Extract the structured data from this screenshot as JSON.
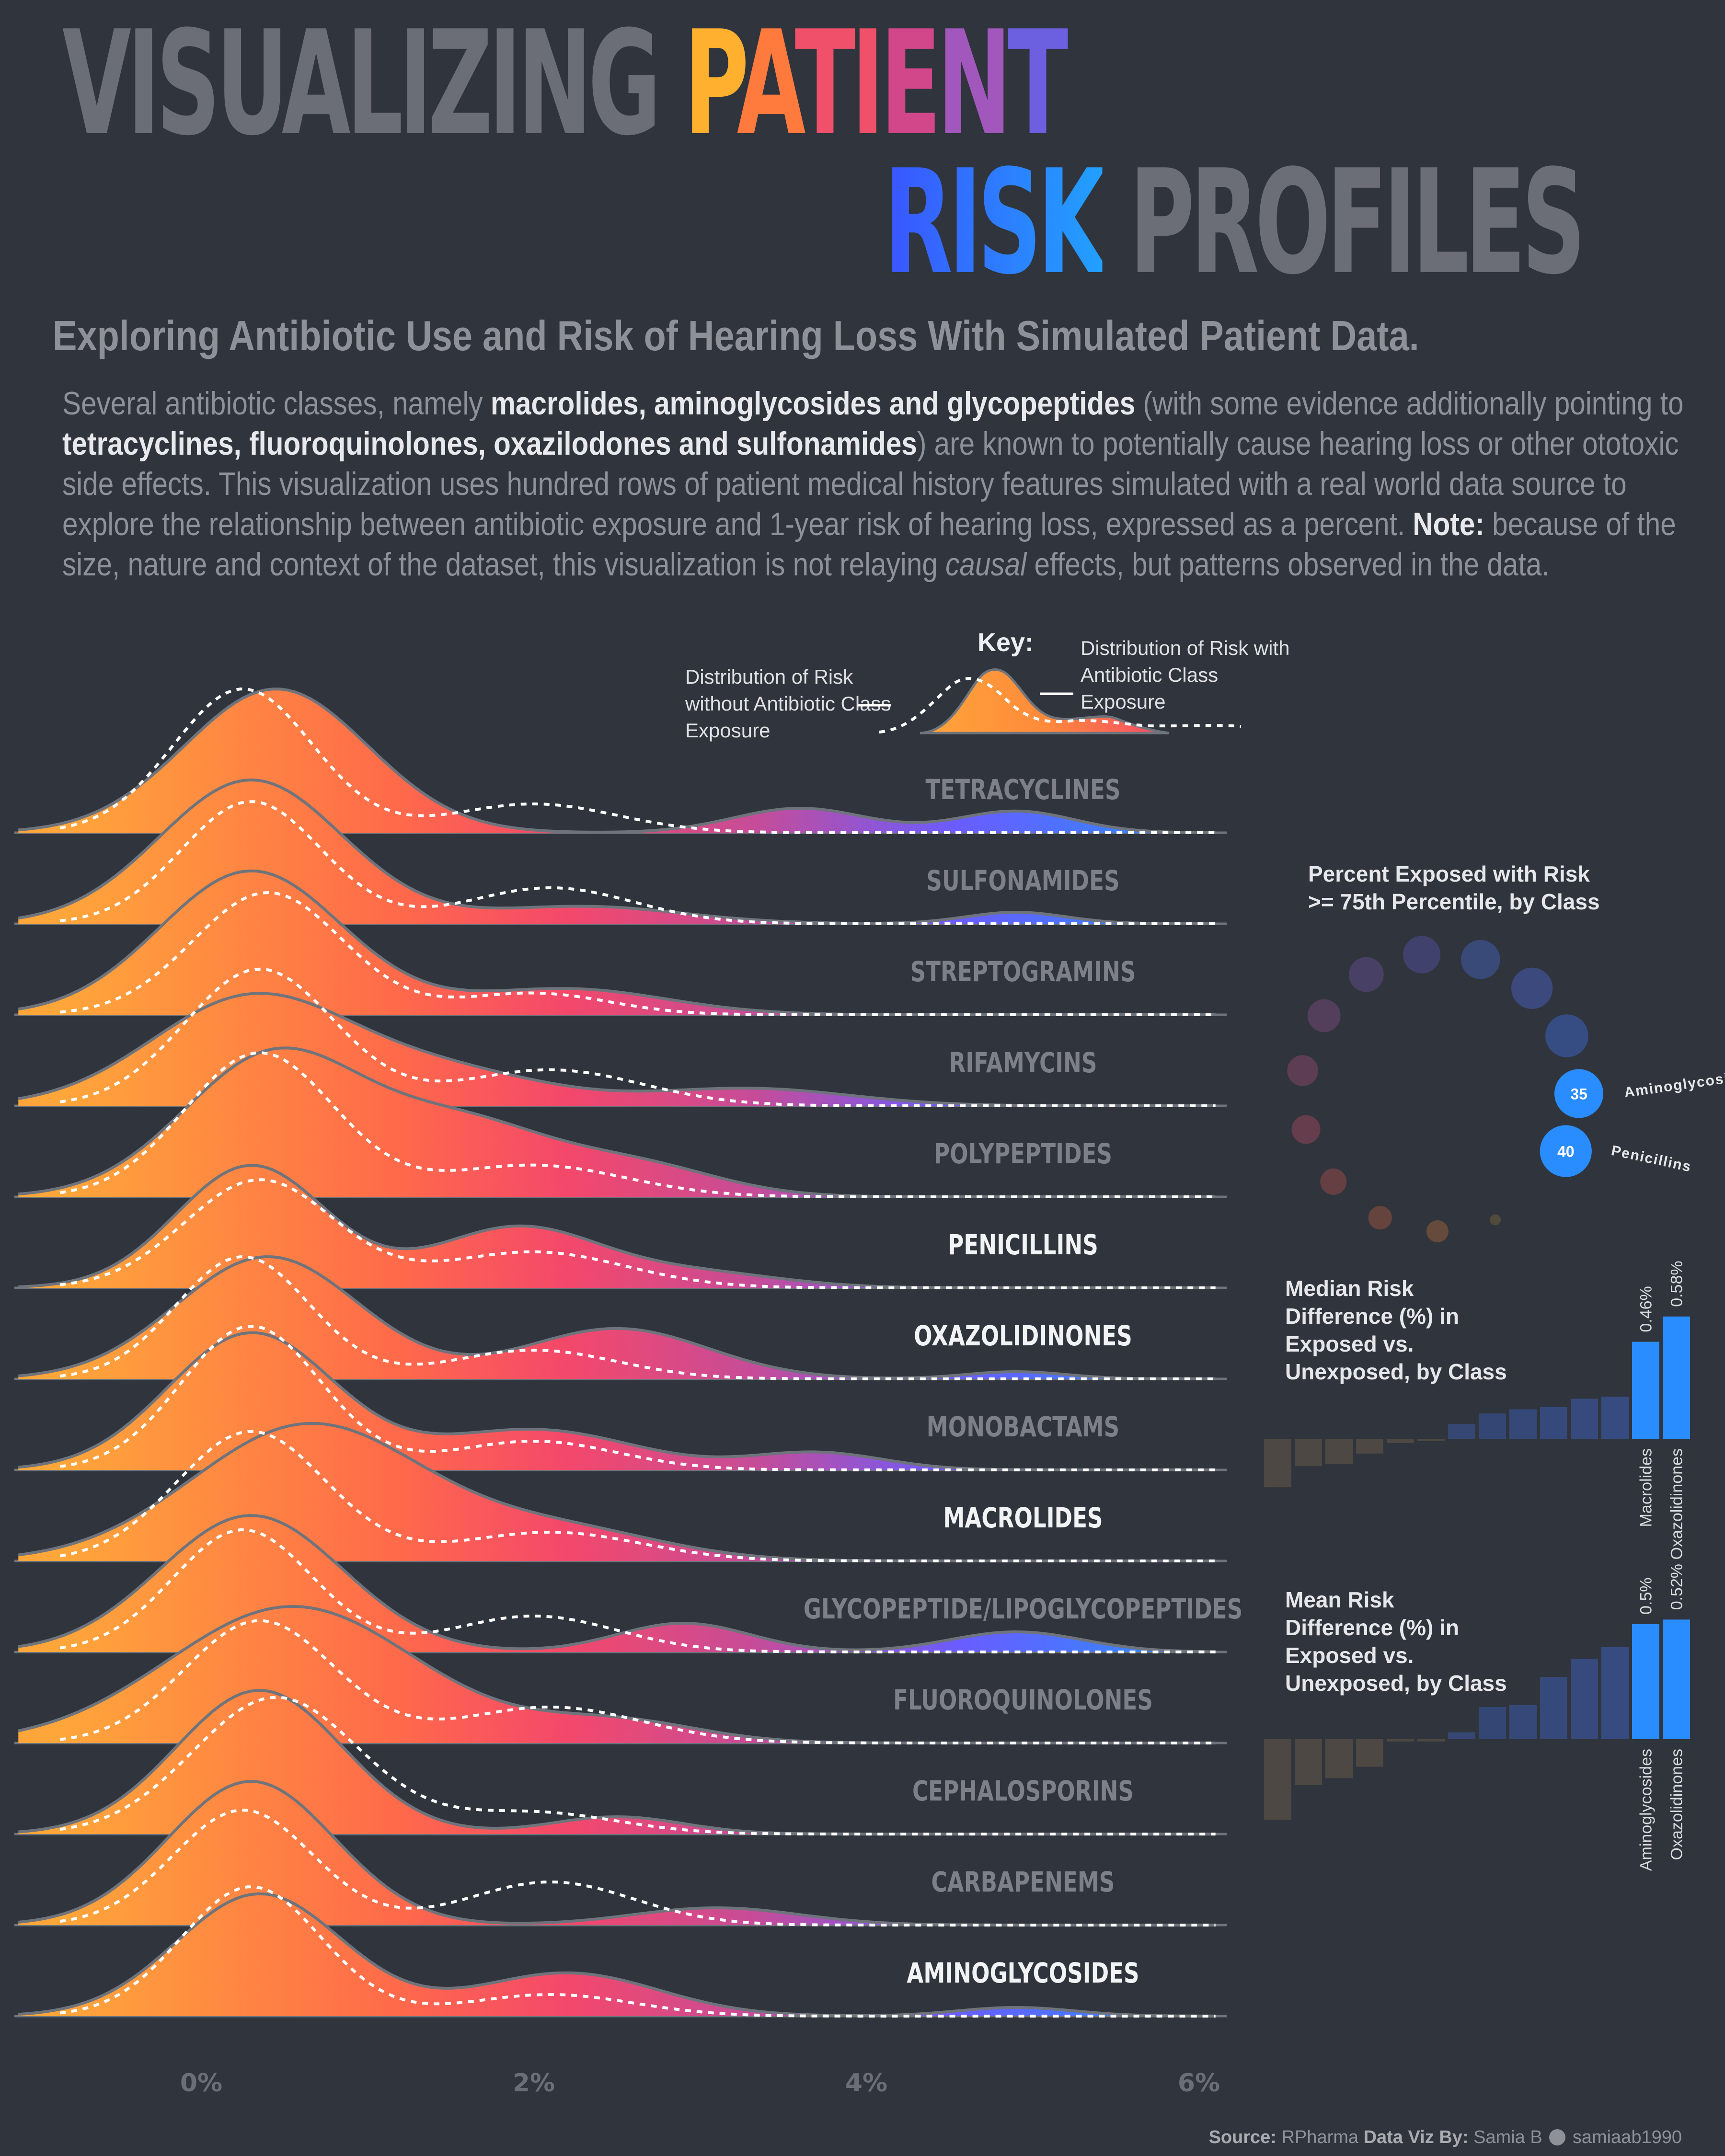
{
  "title": {
    "part1": "VISUALIZING",
    "part2_letters": [
      "P",
      "A",
      "T",
      "I",
      "E",
      "N",
      "T"
    ],
    "part3": "RISK",
    "part4": "PROFILES"
  },
  "subtitle": "Exploring Antibiotic Use and Risk of Hearing Loss With Simulated Patient Data.",
  "intro": {
    "s1": "Several antibiotic classes, namely ",
    "b1": "macrolides, aminoglycosides and glycopeptides",
    "s2": " (with some evidence additionally pointing to ",
    "b2": "tetracyclines, fluoroquinolones, oxazilodones and sulfonamides",
    "s3": ") are known to potentially cause hearing loss or other ototoxic side effects. This visualization uses hundred rows of patient medical history features simulated with a real world data source to explore the relationship between antibiotic exposure and 1-year risk of hearing loss, expressed as a percent. ",
    "b3": "Note:",
    "s4": " because of the size, nature and context of the dataset, this visualization is not relaying ",
    "i1": "causal",
    "s5": " effects, but patterns observed in the data."
  },
  "key": {
    "title": "Key:",
    "left_label": "Distribution of Risk without Antibiotic Class Exposure",
    "right_label": "Distribution of Risk with Antibiotic Class Exposure"
  },
  "ridgeline": {
    "xaxis_ticks": [
      "0%",
      "2%",
      "4%",
      "6%"
    ],
    "x_range": [
      -1.1,
      6.3
    ],
    "classes": [
      {
        "name": "TETRACYCLINES",
        "highlight": false,
        "exposed": [
          [
            0.45,
            1.0,
            0.55
          ],
          [
            3.6,
            0.17,
            0.4
          ],
          [
            4.9,
            0.15,
            0.35
          ]
        ],
        "unexposed": [
          [
            0.25,
            1.0,
            0.42
          ],
          [
            2.0,
            0.2,
            0.5
          ]
        ]
      },
      {
        "name": "SULFONAMIDES",
        "highlight": false,
        "exposed": [
          [
            0.3,
            1.0,
            0.55
          ],
          [
            2.3,
            0.12,
            0.6
          ],
          [
            4.9,
            0.08,
            0.3
          ]
        ],
        "unexposed": [
          [
            0.3,
            0.85,
            0.42
          ],
          [
            2.1,
            0.25,
            0.5
          ]
        ]
      },
      {
        "name": "STREPTOGRAMINS",
        "highlight": false,
        "exposed": [
          [
            0.3,
            1.0,
            0.55
          ],
          [
            2.2,
            0.18,
            0.6
          ]
        ],
        "unexposed": [
          [
            0.4,
            0.85,
            0.45
          ],
          [
            2.0,
            0.15,
            0.45
          ]
        ]
      },
      {
        "name": "RIFAMYCINS",
        "highlight": false,
        "exposed": [
          [
            0.3,
            0.75,
            0.6
          ],
          [
            1.5,
            0.22,
            0.6
          ],
          [
            3.3,
            0.12,
            0.6
          ]
        ],
        "unexposed": [
          [
            0.35,
            0.95,
            0.45
          ],
          [
            2.1,
            0.25,
            0.55
          ]
        ]
      },
      {
        "name": "POLYPEPTIDES",
        "highlight": false,
        "exposed": [
          [
            0.45,
            1.0,
            0.55
          ],
          [
            1.6,
            0.45,
            0.5
          ],
          [
            2.6,
            0.22,
            0.5
          ]
        ],
        "unexposed": [
          [
            0.35,
            1.0,
            0.45
          ],
          [
            2.0,
            0.22,
            0.55
          ]
        ]
      },
      {
        "name": "PENICILLINS",
        "highlight": true,
        "exposed": [
          [
            0.3,
            0.85,
            0.45
          ],
          [
            1.9,
            0.42,
            0.5
          ],
          [
            3.0,
            0.1,
            0.5
          ]
        ],
        "unexposed": [
          [
            0.35,
            0.75,
            0.45
          ],
          [
            2.0,
            0.25,
            0.55
          ]
        ]
      },
      {
        "name": "OXAZOLIDINONES",
        "highlight": true,
        "exposed": [
          [
            0.4,
            0.85,
            0.55
          ],
          [
            2.5,
            0.35,
            0.55
          ],
          [
            4.9,
            0.05,
            0.3
          ]
        ],
        "unexposed": [
          [
            0.25,
            0.85,
            0.4
          ],
          [
            2.0,
            0.2,
            0.5
          ]
        ]
      },
      {
        "name": "MONOBACTAMS",
        "highlight": false,
        "exposed": [
          [
            0.3,
            0.95,
            0.5
          ],
          [
            2.0,
            0.28,
            0.6
          ],
          [
            3.7,
            0.12,
            0.4
          ]
        ],
        "unexposed": [
          [
            0.3,
            1.0,
            0.42
          ],
          [
            2.0,
            0.2,
            0.5
          ]
        ]
      },
      {
        "name": "MACROLIDES",
        "highlight": true,
        "exposed": [
          [
            0.65,
            0.95,
            0.7
          ],
          [
            2.2,
            0.2,
            0.6
          ]
        ],
        "unexposed": [
          [
            0.3,
            0.9,
            0.45
          ],
          [
            2.1,
            0.2,
            0.55
          ]
        ]
      },
      {
        "name": "GLYCOPEPTIDE/LIPOGLYCOPEPTIDES",
        "highlight": false,
        "exposed": [
          [
            0.3,
            0.95,
            0.55
          ],
          [
            2.9,
            0.2,
            0.4
          ],
          [
            4.9,
            0.14,
            0.4
          ]
        ],
        "unexposed": [
          [
            0.25,
            0.85,
            0.42
          ],
          [
            2.0,
            0.25,
            0.5
          ]
        ]
      },
      {
        "name": "FLUOROQUINOLONES",
        "highlight": false,
        "exposed": [
          [
            0.55,
            0.95,
            0.75
          ],
          [
            2.5,
            0.15,
            0.5
          ]
        ],
        "unexposed": [
          [
            0.35,
            0.85,
            0.45
          ],
          [
            2.1,
            0.25,
            0.55
          ]
        ]
      },
      {
        "name": "CEPHALOSPORINS",
        "highlight": false,
        "exposed": [
          [
            0.35,
            1.0,
            0.5
          ],
          [
            2.5,
            0.12,
            0.4
          ]
        ],
        "unexposed": [
          [
            0.45,
            0.95,
            0.5
          ],
          [
            2.0,
            0.15,
            0.5
          ]
        ]
      },
      {
        "name": "CARBAPENEMS",
        "highlight": false,
        "exposed": [
          [
            0.3,
            1.0,
            0.5
          ],
          [
            3.1,
            0.12,
            0.5
          ]
        ],
        "unexposed": [
          [
            0.25,
            0.8,
            0.42
          ],
          [
            2.1,
            0.3,
            0.5
          ]
        ]
      },
      {
        "name": "AMINOGLYCOSIDES",
        "highlight": true,
        "exposed": [
          [
            0.35,
            0.85,
            0.5
          ],
          [
            2.2,
            0.3,
            0.55
          ],
          [
            4.9,
            0.06,
            0.35
          ]
        ],
        "unexposed": [
          [
            0.3,
            0.9,
            0.42
          ],
          [
            2.1,
            0.15,
            0.5
          ]
        ]
      }
    ]
  },
  "percent_exposed": {
    "title_line1": "Percent Exposed with Risk",
    "title_line2": ">= 75th Percentile, by Class",
    "ring_values": [
      40,
      35,
      26,
      24,
      21,
      19,
      16,
      14,
      12,
      10,
      8,
      6,
      5,
      0.5
    ],
    "ring_colors": [
      "#2a8dff",
      "#2a8dff",
      "#3b5fb4",
      "#4258a8",
      "#3f5aa2",
      "#4b4d8e",
      "#5a4a80",
      "#6a4670",
      "#7a4562",
      "#884556",
      "#8a4848",
      "#8a5040",
      "#8a5a3a",
      "#6a5a40"
    ],
    "value_labels": [
      {
        "value": "35",
        "class": "Aminoglycosides"
      },
      {
        "value": "40",
        "class": "Penicillins"
      }
    ]
  },
  "median_panel": {
    "title_lines": [
      "Median Risk",
      "Difference (%) in",
      "Exposed vs.",
      "Unexposed, by Class"
    ],
    "values": [
      -0.23,
      -0.13,
      -0.12,
      -0.07,
      -0.02,
      -0.01,
      0.07,
      0.12,
      0.14,
      0.15,
      0.19,
      0.2,
      0.46,
      0.58
    ],
    "highlight_labels": [
      {
        "index": 12,
        "value": "0.46%",
        "class": "Macrolides"
      },
      {
        "index": 13,
        "value": "0.58%",
        "class": "Oxazolidinones"
      }
    ],
    "pos_color": "#2a8dff",
    "neg_color": "#665a48"
  },
  "mean_panel": {
    "title_lines": [
      "Mean Risk",
      "Difference (%) in",
      "Exposed vs.",
      "Unexposed, by Class"
    ],
    "values": [
      -0.35,
      -0.2,
      -0.17,
      -0.12,
      -0.01,
      -0.01,
      0.03,
      0.14,
      0.15,
      0.27,
      0.35,
      0.4,
      0.5,
      0.52
    ],
    "highlight_labels": [
      {
        "index": 12,
        "value": "0.5%",
        "class": "Aminoglycosides"
      },
      {
        "index": 13,
        "value": "0.52%",
        "class": "Oxazolidinones"
      }
    ],
    "pos_color": "#2a8dff",
    "neg_color": "#665a48"
  },
  "footer": {
    "source_label": "Source:",
    "source_value": "RPharma",
    "by_label": "Data Viz By:",
    "by_value": "Samia B",
    "handle": "samiaab1990"
  },
  "chart_data": [
    {
      "type": "area",
      "title": "",
      "xlabel": "",
      "ylabel": "",
      "x_ticks": [
        "0%",
        "2%",
        "4%",
        "6%"
      ],
      "series": [
        {
          "name": "Distribution of Risk with Antibiotic Class Exposure"
        },
        {
          "name": "Distribution of Risk without Antibiotic Class Exposure"
        }
      ],
      "categories": [
        "TETRACYCLINES",
        "SULFONAMIDES",
        "STREPTOGRAMINS",
        "RIFAMYCINS",
        "POLYPEPTIDES",
        "PENICILLINS",
        "OXAZOLIDINONES",
        "MONOBACTAMS",
        "MACROLIDES",
        "GLYCOPEPTIDE/LIPOGLYCOPEPTIDES",
        "FLUOROQUINOLONES",
        "CEPHALOSPORINS",
        "CARBAPENEMS",
        "AMINOGLYCOSIDES"
      ]
    },
    {
      "type": "scatter",
      "title": "Percent Exposed with Risk >= 75th Percentile, by Class",
      "labels": [
        {
          "class": "Aminoglycosides",
          "value": 35
        },
        {
          "class": "Penicillins",
          "value": 40
        }
      ]
    },
    {
      "type": "bar",
      "title": "Median Risk Difference (%) in Exposed vs. Unexposed, by Class",
      "values": [
        -0.23,
        -0.13,
        -0.12,
        -0.07,
        -0.02,
        -0.01,
        0.07,
        0.12,
        0.14,
        0.15,
        0.19,
        0.2,
        0.46,
        0.58
      ],
      "labeled": [
        {
          "class": "Macrolides",
          "value": 0.46
        },
        {
          "class": "Oxazolidinones",
          "value": 0.58
        }
      ]
    },
    {
      "type": "bar",
      "title": "Mean Risk Difference (%) in Exposed vs. Unexposed, by Class",
      "values": [
        -0.35,
        -0.2,
        -0.17,
        -0.12,
        -0.01,
        -0.01,
        0.03,
        0.14,
        0.15,
        0.27,
        0.35,
        0.4,
        0.5,
        0.52
      ],
      "labeled": [
        {
          "class": "Aminoglycosides",
          "value": 0.5
        },
        {
          "class": "Oxazolidinones",
          "value": 0.52
        }
      ]
    }
  ]
}
